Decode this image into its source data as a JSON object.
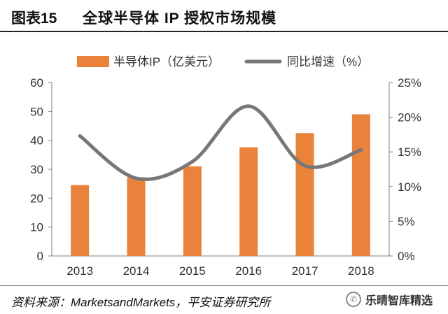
{
  "figure": {
    "number": "图表15",
    "title": "全球半导体 IP 授权市场规模"
  },
  "chart_data": {
    "type": "bar",
    "title": "全球半导体 IP 授权市场规模",
    "categories": [
      "2013",
      "2014",
      "2015",
      "2016",
      "2017",
      "2018"
    ],
    "series": [
      {
        "name": "半导体IP（亿美元）",
        "kind": "bar",
        "axis": "left",
        "color": "#E9823A",
        "values": [
          24.5,
          27.2,
          31.0,
          37.6,
          42.5,
          49.0
        ]
      },
      {
        "name": "同比增速（%）",
        "kind": "line",
        "axis": "right",
        "color": "#777777",
        "values": [
          17.3,
          11.2,
          13.6,
          21.6,
          13.0,
          15.3
        ]
      }
    ],
    "left_axis": {
      "ylim": [
        0,
        60
      ],
      "ticks": [
        "0",
        "10",
        "20",
        "30",
        "40",
        "50",
        "60"
      ]
    },
    "right_axis": {
      "ylim": [
        0,
        25
      ],
      "ticks": [
        "0%",
        "5%",
        "10%",
        "15%",
        "20%",
        "25%"
      ]
    },
    "legend_position": "top",
    "grid": false
  },
  "footer": {
    "source": "资料来源：MarketsandMarkets，平安证券研究所",
    "watermark": "乐晴智库精选"
  }
}
